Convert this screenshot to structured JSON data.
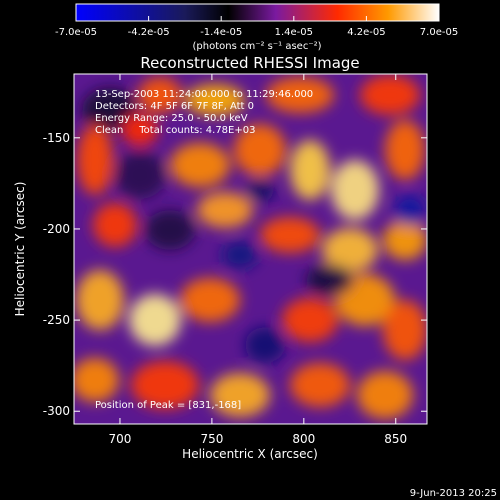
{
  "chart_data": {
    "type": "heatmap",
    "title": "Reconstructed RHESSI Image",
    "xlabel": "Heliocentric X (arcsec)",
    "ylabel": "Heliocentric Y (arcsec)",
    "xlim": [
      675,
      867
    ],
    "ylim": [
      -307,
      -115
    ],
    "xticks": [
      700,
      750,
      800,
      850
    ],
    "yticks": [
      -150,
      -200,
      -250,
      -300
    ],
    "colorbar": {
      "range": [
        -7e-05,
        7e-05
      ],
      "ticks": [
        {
          "value": -7e-05,
          "label": "-7.0e-05"
        },
        {
          "value": -4.2e-05,
          "label": "-4.2e-05"
        },
        {
          "value": -1.4e-05,
          "label": "-1.4e-05"
        },
        {
          "value": 1.4e-05,
          "label": "1.4e-05"
        },
        {
          "value": 4.2e-05,
          "label": "4.2e-05"
        },
        {
          "value": 7e-05,
          "label": "7.0e-05"
        }
      ],
      "units_label": "(photons cm⁻² s⁻¹ asec⁻²)",
      "colormap": [
        "#0000ff",
        "#000000",
        "#7a1aa0",
        "#ff2a00",
        "#ff9a00",
        "#ffffff"
      ]
    },
    "annotations": [
      "13-Sep-2003 11:24:00.000 to 11:29:46.000",
      "Detectors: 4F 5F 6F 7F 8F, Att 0",
      "Energy Range: 25.0 - 50.0 keV",
      "Clean     Total counts: 4.78E+03"
    ],
    "peak_label": "Position of Peak = [831,-168]",
    "peak_position": [
      831,
      -168
    ],
    "grid": false
  },
  "footer": {
    "timestamp": "9-Jun-2013 20:25"
  }
}
